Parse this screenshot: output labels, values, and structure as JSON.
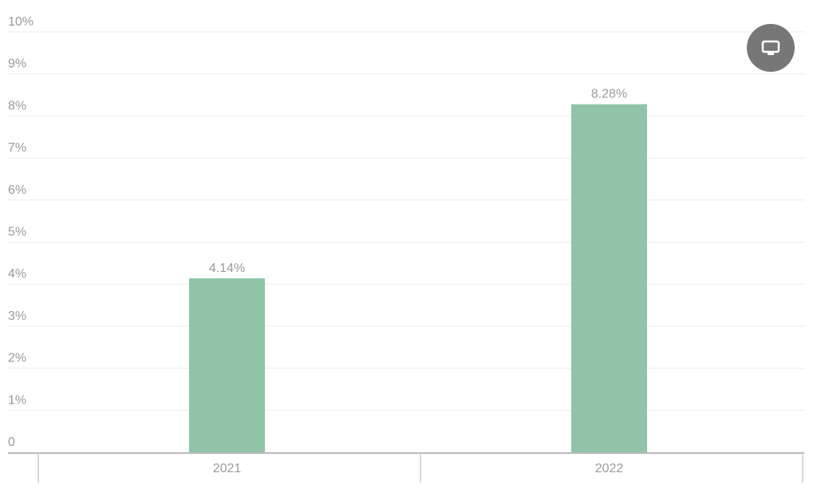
{
  "chart_data": {
    "type": "bar",
    "categories": [
      "2021",
      "2022"
    ],
    "values": [
      4.14,
      8.28
    ],
    "value_labels": [
      "4.14%",
      "8.28%"
    ],
    "color": "#8fc4a8",
    "ylim": [
      0,
      10
    ],
    "yticks": [
      0,
      {
        "value": 1,
        "label": "1%"
      },
      {
        "value": 2,
        "label": "2%"
      },
      {
        "value": 3,
        "label": "3%"
      },
      {
        "value": 4,
        "label": "4%"
      },
      {
        "value": 5,
        "label": "5%"
      },
      {
        "value": 6,
        "label": "6%"
      },
      {
        "value": 7,
        "label": "7%"
      },
      {
        "value": 8,
        "label": "8%"
      },
      {
        "value": 9,
        "label": "9%"
      },
      {
        "value": 10,
        "label": "10%"
      }
    ],
    "grid": true
  }
}
